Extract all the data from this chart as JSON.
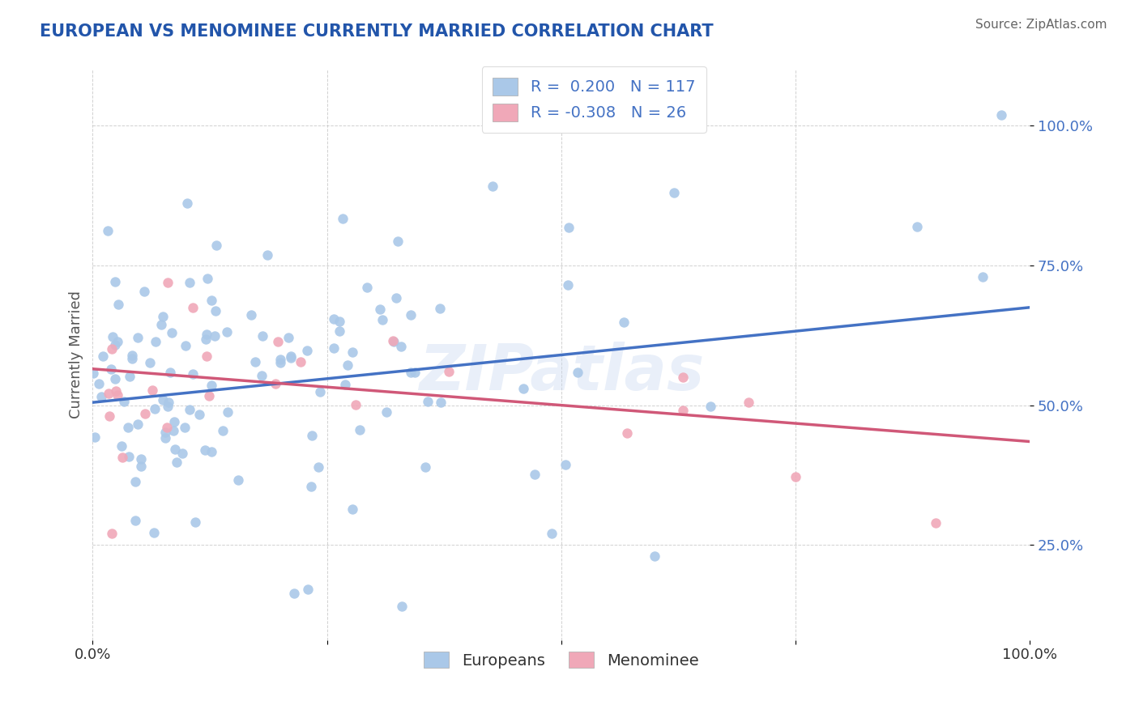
{
  "title": "EUROPEAN VS MENOMINEE CURRENTLY MARRIED CORRELATION CHART",
  "source_text": "Source: ZipAtlas.com",
  "ylabel": "Currently Married",
  "xlim": [
    0.0,
    1.0
  ],
  "ylim": [
    0.08,
    1.1
  ],
  "european_color": "#aac8e8",
  "menominee_color": "#f0a8b8",
  "european_line_color": "#4472c4",
  "menominee_line_color": "#d05878",
  "r_european": 0.2,
  "n_european": 117,
  "r_menominee": -0.308,
  "n_menominee": 26,
  "legend_label_european": "Europeans",
  "legend_label_menominee": "Menominee",
  "watermark": "ZIPatlas",
  "scatter_size": 80,
  "background_color": "#ffffff",
  "grid_color": "#cccccc",
  "title_color": "#2255aa",
  "tick_color_y": "#4472c4",
  "tick_color_x": "#333333",
  "euro_line_x0": 0.0,
  "euro_line_y0": 0.505,
  "euro_line_x1": 1.0,
  "euro_line_y1": 0.675,
  "meno_line_x0": 0.0,
  "meno_line_y0": 0.565,
  "meno_line_x1": 1.0,
  "meno_line_y1": 0.435
}
